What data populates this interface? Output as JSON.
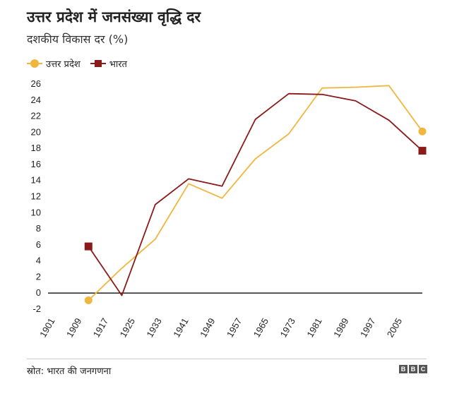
{
  "header": {
    "title": "उत्तर प्रदेश में जनसंख्या वृद्धि दर",
    "subtitle": "दशकीय विकास दर (%)"
  },
  "legend": [
    {
      "label": "उत्तर प्रदेश",
      "color": "#f0b73e",
      "marker": "circle"
    },
    {
      "label": "भारत",
      "color": "#8b1a1a",
      "marker": "square"
    }
  ],
  "chart_data": {
    "type": "line",
    "title": "उत्तर प्रदेश में जनसंख्या वृद्धि दर",
    "subtitle": "दशकीय विकास दर (%)",
    "xlabel": "",
    "ylabel": "",
    "categories": [
      "1901",
      "1909",
      "1917",
      "1925",
      "1933",
      "1941",
      "1949",
      "1957",
      "1965",
      "1973",
      "1981",
      "1989",
      "1997",
      "2005"
    ],
    "x": [
      1911,
      1921,
      1931,
      1941,
      1951,
      1961,
      1971,
      1981,
      1991,
      2001,
      2011
    ],
    "ylim": [
      -2,
      26
    ],
    "xlim": [
      1901,
      2011
    ],
    "yticks": [
      -2,
      0,
      2,
      4,
      6,
      8,
      10,
      12,
      14,
      16,
      18,
      20,
      22,
      24,
      26
    ],
    "xticks": [
      1901,
      1909,
      1917,
      1925,
      1933,
      1941,
      1949,
      1957,
      1965,
      1973,
      1981,
      1989,
      1997,
      2005
    ],
    "grid": false,
    "legend_position": "top-left",
    "series": [
      {
        "name": "उत्तर प्रदेश",
        "color": "#f0b73e",
        "marker": "circle",
        "values": [
          -0.9,
          3.1,
          6.7,
          13.6,
          11.8,
          16.7,
          19.8,
          25.5,
          25.6,
          25.8,
          20.1
        ]
      },
      {
        "name": "भारत",
        "color": "#8b1a1a",
        "marker": "square",
        "values": [
          5.8,
          -0.3,
          11.0,
          14.2,
          13.3,
          21.6,
          24.8,
          24.7,
          23.9,
          21.5,
          17.7
        ]
      }
    ]
  },
  "footer": {
    "source": "स्रोत: भारत की जनगणना",
    "logo_letters": [
      "B",
      "B",
      "C"
    ]
  }
}
